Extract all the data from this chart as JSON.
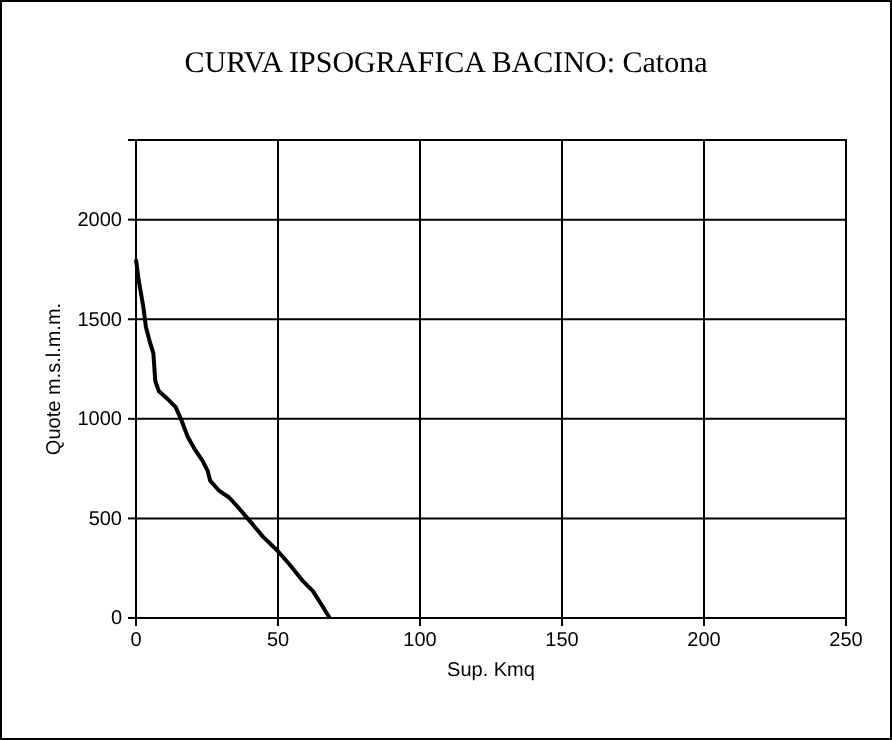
{
  "chart_data": {
    "type": "line",
    "title": "CURVA IPSOGRAFICA BACINO: Catona",
    "xlabel": "Sup. Kmq",
    "ylabel": "Quote m.s.l.m.m.",
    "xlim": [
      0,
      250
    ],
    "xticks": [
      0,
      50,
      100,
      150,
      200,
      250
    ],
    "ylim": [
      0,
      2400
    ],
    "yticks": [
      0,
      500,
      1000,
      1500,
      2000
    ],
    "grid": true,
    "marker": "none",
    "line_style": "solid",
    "series": [
      {
        "color": "#000000",
        "x": [
          0,
          0.9,
          2.6,
          3.5,
          5,
          6.1,
          6.8,
          8,
          11.1,
          13.9,
          15.8,
          18.2,
          21,
          23.4,
          25.2,
          26.1,
          29.2,
          32.8,
          36.3,
          39.9,
          44.6,
          50,
          54,
          58.8,
          62.3,
          65.4,
          68.2
        ],
        "values": [
          1800,
          1700,
          1560,
          1460,
          1380,
          1330,
          1190,
          1140,
          1100,
          1060,
          1000,
          910,
          840,
          790,
          740,
          690,
          640,
          605,
          550,
          490,
          410,
          335,
          270,
          185,
          135,
          65,
          0
        ]
      }
    ]
  }
}
